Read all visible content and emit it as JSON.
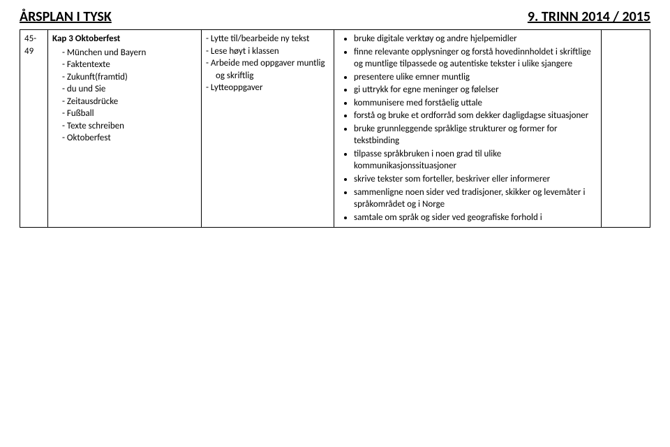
{
  "header": {
    "title_left": "ÅRSPLAN I TYSK",
    "title_right": "9. TRINN 2014 / 2015",
    "title_fontsize_pt": 15
  },
  "body_fontsize_pt": 13,
  "colors": {
    "text": "#000000",
    "border": "#000000",
    "background": "#ffffff"
  },
  "row": {
    "week": "45-49",
    "chapter": "Kap 3 Oktoberfest",
    "topics": [
      "München und Bayern",
      "Faktentexte",
      "Zukunft(framtid)",
      "du und Sie",
      "Zeitausdrücke",
      "Fußball",
      "Texte schreiben",
      "Oktoberfest"
    ],
    "methods": [
      "Lytte til/bearbeide ny tekst",
      "Lese høyt i klassen",
      "Arbeide med oppgaver muntlig og skriftlig",
      "Lytteoppgaver"
    ],
    "goals": [
      "bruke digitale verktøy og andre hjelpemidler",
      "finne relevante opplysninger og forstå hovedinnholdet i skriftlige og muntlige tilpassede og autentiske tekster i ulike sjangere",
      "presentere ulike emner muntlig",
      "gi uttrykk for egne meninger og følelser",
      "kommunisere med forståelig uttale",
      "forstå og bruke et ordforråd som dekker dagligdagse situasjoner",
      "bruke grunnleggende språklige strukturer og former for tekstbinding",
      "tilpasse språkbruken i noen grad til ulike kommunikasjonssituasjoner",
      "skrive tekster som forteller, beskriver eller informerer",
      "sammenligne noen sider ved tradisjoner, skikker og levemåter i språkområdet og i Norge",
      "samtale om språk og sider ved geografiske forhold i"
    ]
  }
}
